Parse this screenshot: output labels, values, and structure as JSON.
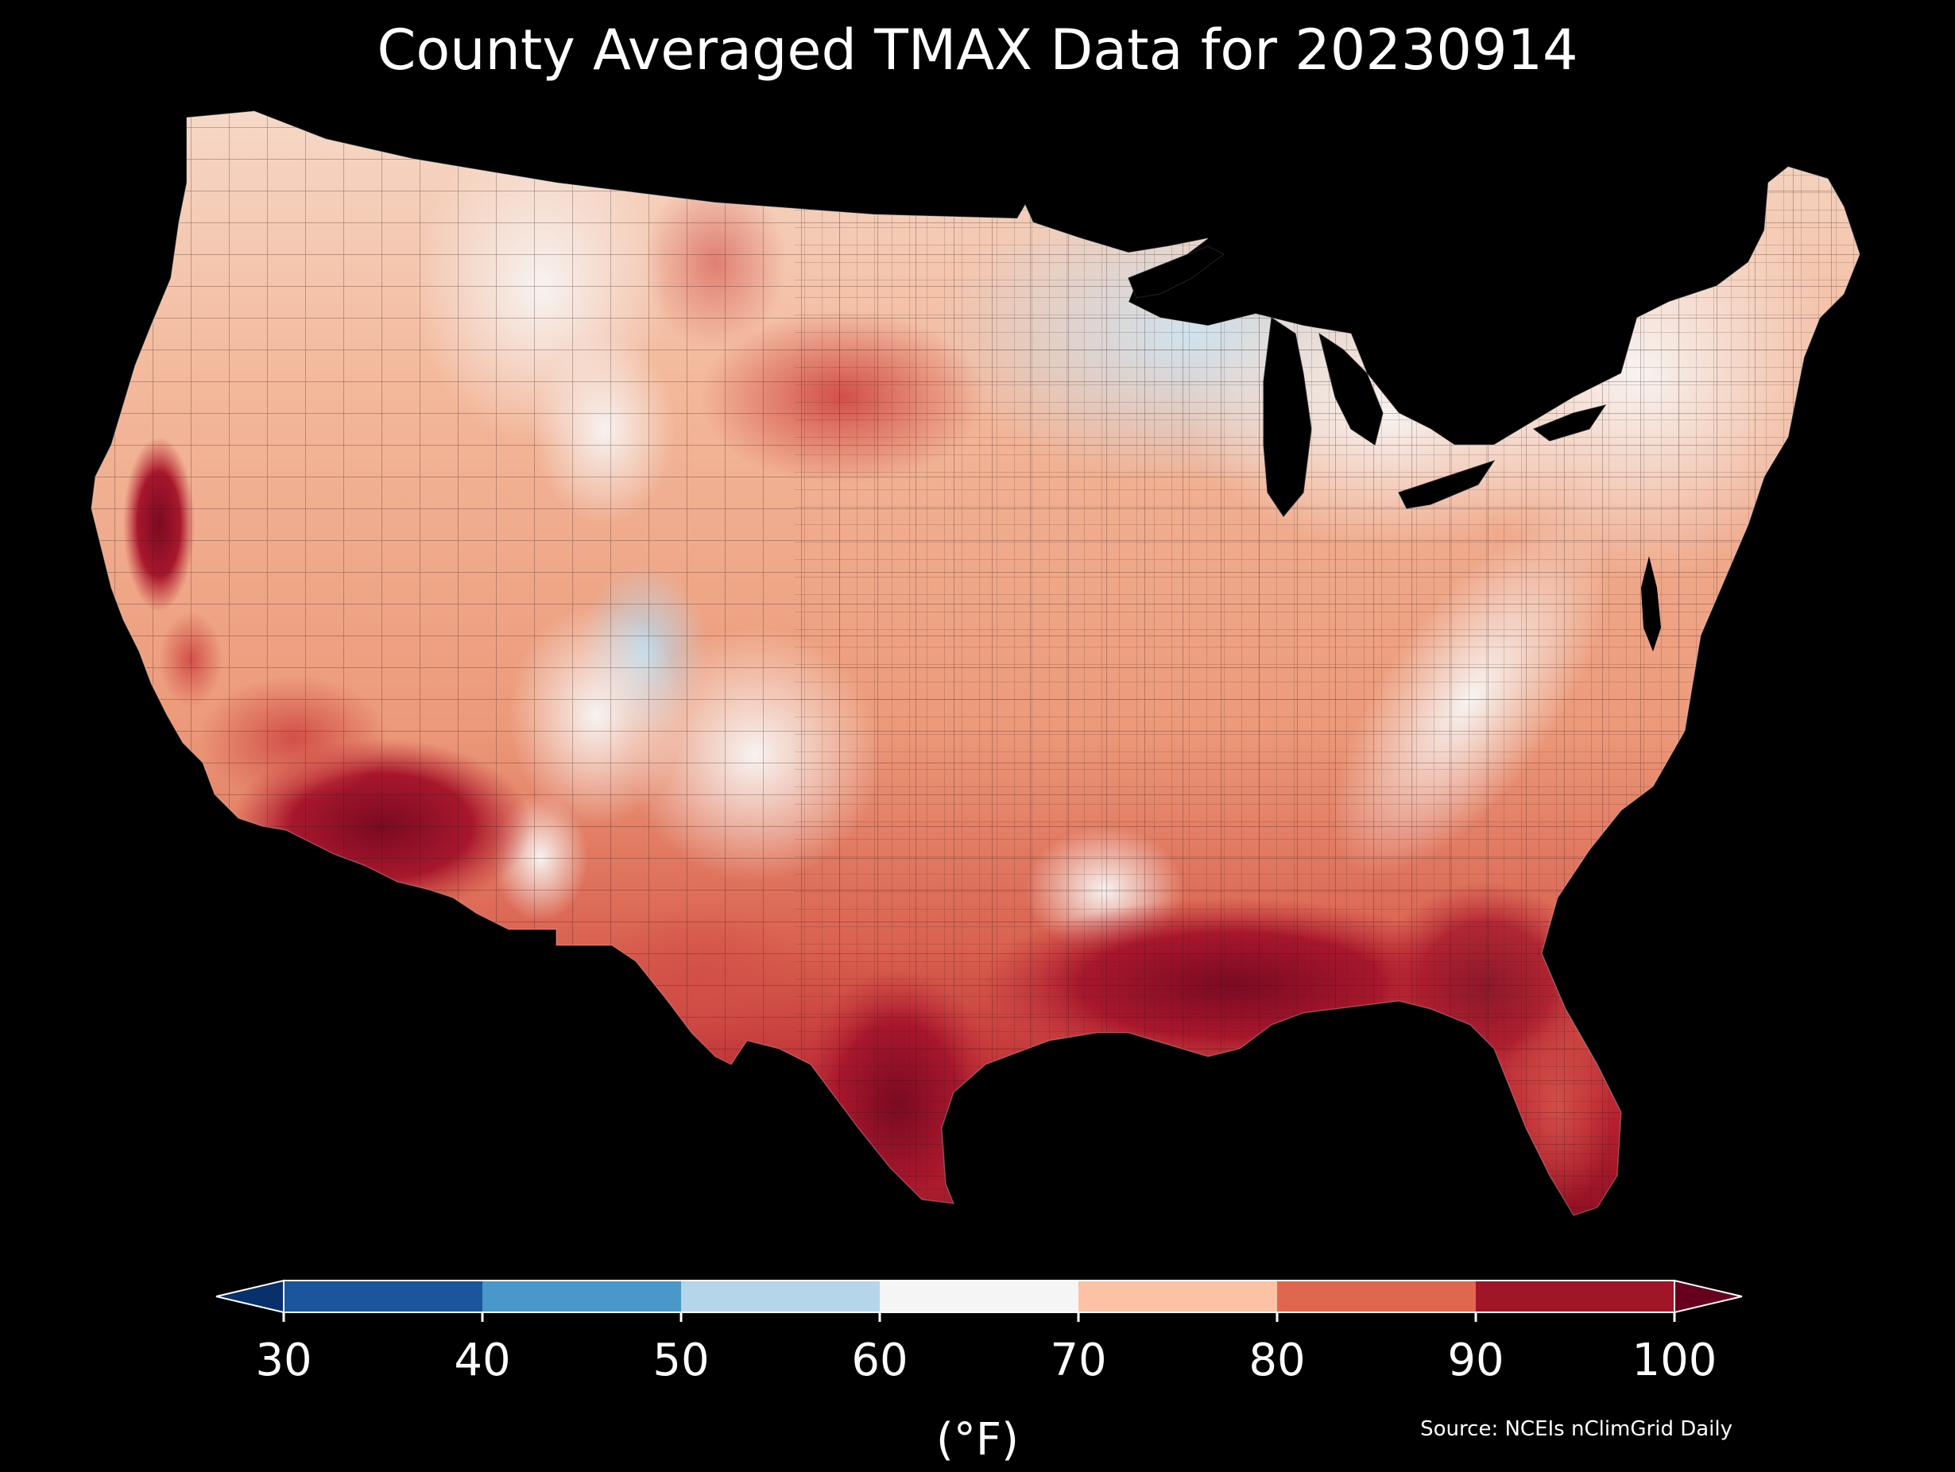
{
  "title": "County Averaged TMAX Data for 20230914",
  "colorbar": {
    "ticks": [
      "30",
      "40",
      "50",
      "60",
      "70",
      "80",
      "90",
      "100"
    ],
    "unit": "(°F)",
    "bins": [
      {
        "range": "<30",
        "color": "#08306b"
      },
      {
        "range": "30-40",
        "color": "#1b559b"
      },
      {
        "range": "40-50",
        "color": "#4a98c9"
      },
      {
        "range": "50-60",
        "color": "#b5d6ea"
      },
      {
        "range": "60-70",
        "color": "#f5f5f5"
      },
      {
        "range": "70-80",
        "color": "#fbc2a6"
      },
      {
        "range": "80-90",
        "color": "#e0674f"
      },
      {
        "range": ">90",
        "color": "#a01527"
      }
    ]
  },
  "source": "Source: NCEIs nClimGrid Daily",
  "map": {
    "region": "contiguous-united-states",
    "variable": "TMAX",
    "colors": {
      "coolest": "#b5d6ea",
      "mild": "#f5f5f5",
      "warm": "#f4a582",
      "hot": "#d6604d",
      "hottest": "#67001f"
    }
  }
}
